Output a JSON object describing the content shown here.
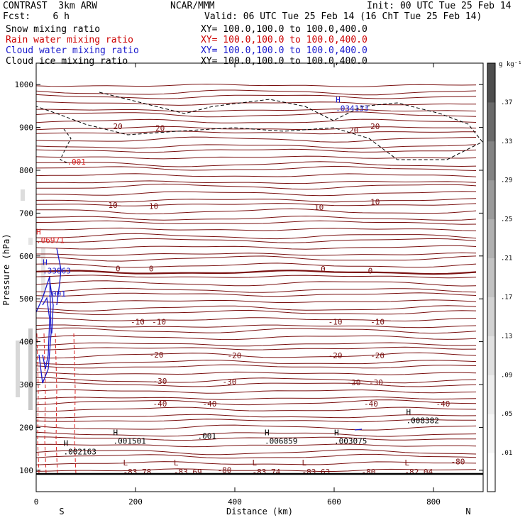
{
  "header": {
    "left1": "CONTRAST  3km ARW",
    "center1": "NCAR/MMM",
    "right1": "Init: 00 UTC Tue 25 Feb 14",
    "left2": "Fcst:    6 h",
    "right2": "Valid: 06 UTC Tue 25 Feb 14 (16 ChT Tue 25 Feb 14)",
    "fields": [
      {
        "label": "Snow mixing ratio",
        "xy": "",
        "color": "#000000"
      },
      {
        "label": "Rain water mixing ratio",
        "xy": "XY= 100.0,100.0 to 100.0,400.0",
        "color": "#cc0000"
      },
      {
        "label": "Cloud water mixing ratio",
        "xy": "XY= 100.0,100.0 to 100.0,400.0",
        "color": "#1a1acc"
      },
      {
        "label": "Cloud ice mixing ratio",
        "xy": "XY= 100.0,100.0 to 100.0,400.0",
        "color": "#000000"
      }
    ],
    "snow_xy": "XY= 100.0,100.0 to 100.0,400.0"
  },
  "chart_data": {
    "type": "heatmap",
    "title": "Snow mixing ratio",
    "xlabel": "Distance (km)",
    "ylabel": "Pressure (hPa)",
    "xlim": [
      0,
      900
    ],
    "ylim": [
      1050,
      50
    ],
    "x_ticks": [
      0,
      200,
      400,
      600,
      800
    ],
    "y_ticks": [
      100,
      200,
      300,
      400,
      500,
      600,
      700,
      800,
      900,
      1000
    ],
    "x_endpoints": {
      "left": "S",
      "right": "N"
    },
    "colorbar": {
      "unit": "g kg⁻¹",
      "levels": [
        ".01",
        ".05",
        ".09",
        ".13",
        ".17",
        ".21",
        ".25",
        ".29",
        ".33",
        ".37"
      ],
      "colors": [
        "#ffffff",
        "#f6f6f6",
        "#ececec",
        "#e0e0e0",
        "#d2d2d2",
        "#c2c2c2",
        "#b0b0b0",
        "#9a9a9a",
        "#838383",
        "#6a6a6a",
        "#4e4e4e"
      ]
    },
    "temperature_contours": {
      "color": "#7a1010",
      "labels": [
        {
          "text": "-80",
          "x": 365,
          "p": 94
        },
        {
          "text": "-80",
          "x": 655,
          "p": 90
        },
        {
          "text": "-80",
          "x": 835,
          "p": 114
        },
        {
          "text": "-40",
          "x": 235,
          "p": 249
        },
        {
          "text": "-40",
          "x": 335,
          "p": 249
        },
        {
          "text": "-40",
          "x": 660,
          "p": 249
        },
        {
          "text": "-40",
          "x": 805,
          "p": 249
        },
        {
          "text": "-30",
          "x": 235,
          "p": 302
        },
        {
          "text": "-30",
          "x": 375,
          "p": 300
        },
        {
          "text": "-30",
          "x": 625,
          "p": 298
        },
        {
          "text": "-30",
          "x": 670,
          "p": 298
        },
        {
          "text": "-20",
          "x": 228,
          "p": 363
        },
        {
          "text": "-20",
          "x": 385,
          "p": 361
        },
        {
          "text": "-20",
          "x": 588,
          "p": 361
        },
        {
          "text": "-20",
          "x": 673,
          "p": 361
        },
        {
          "text": "-10",
          "x": 190,
          "p": 440
        },
        {
          "text": "-10",
          "x": 233,
          "p": 440
        },
        {
          "text": "-10",
          "x": 588,
          "p": 440
        },
        {
          "text": "-10",
          "x": 673,
          "p": 440
        },
        {
          "text": "0",
          "x": 160,
          "p": 564
        },
        {
          "text": "0",
          "x": 227,
          "p": 564
        },
        {
          "text": "0",
          "x": 573,
          "p": 563
        },
        {
          "text": "0",
          "x": 668,
          "p": 559
        },
        {
          "text": "10",
          "x": 145,
          "p": 712
        },
        {
          "text": "10",
          "x": 227,
          "p": 710
        },
        {
          "text": "10",
          "x": 560,
          "p": 707
        },
        {
          "text": "10",
          "x": 673,
          "p": 720
        },
        {
          "text": "20",
          "x": 155,
          "p": 896
        },
        {
          "text": "20",
          "x": 240,
          "p": 892
        },
        {
          "text": "20",
          "x": 630,
          "p": 887
        },
        {
          "text": "20",
          "x": 673,
          "p": 896
        }
      ],
      "low_markers": [
        {
          "text": "L",
          "value": "-83.78",
          "x": 175,
          "p": 111
        },
        {
          "text": "L",
          "value": "-83.69",
          "x": 277,
          "p": 111
        },
        {
          "text": "L",
          "value": "-83.74",
          "x": 435,
          "p": 111
        },
        {
          "text": "L",
          "value": "-83.63",
          "x": 535,
          "p": 111
        },
        {
          "text": "L",
          "value": "-82.04",
          "x": 742,
          "p": 111
        }
      ]
    },
    "ice_contours": {
      "color": "#000000",
      "labels": [
        {
          "text": ".001",
          "x": 325,
          "p": 173
        }
      ],
      "high_markers": [
        {
          "text": "H",
          "value": ".002163",
          "x": 55,
          "p": 157
        },
        {
          "text": "H",
          "value": ".001501",
          "x": 155,
          "p": 182
        },
        {
          "text": "H",
          "value": ".006859",
          "x": 460,
          "p": 182
        },
        {
          "text": "H",
          "value": ".003075",
          "x": 600,
          "p": 182
        },
        {
          "text": "H",
          "value": ".008382",
          "x": 745,
          "p": 230
        }
      ]
    },
    "cloud_water_contours": {
      "color": "#1a1acc",
      "labels": [
        {
          "text": ".001",
          "x": 22,
          "p": 505
        }
      ],
      "high_markers": [
        {
          "text": "H",
          "value": ".33863",
          "x": 13,
          "p": 579
        },
        {
          "text": "H",
          "value": ".034133",
          "x": 603,
          "p": 958
        }
      ]
    },
    "rain_water_contours": {
      "color": "#dd2222",
      "labels": [
        {
          "text": ".001",
          "x": 62,
          "p": 813
        }
      ],
      "high_markers": [
        {
          "text": "H",
          "value": ".06971",
          "x": 0,
          "p": 650
        }
      ]
    }
  }
}
